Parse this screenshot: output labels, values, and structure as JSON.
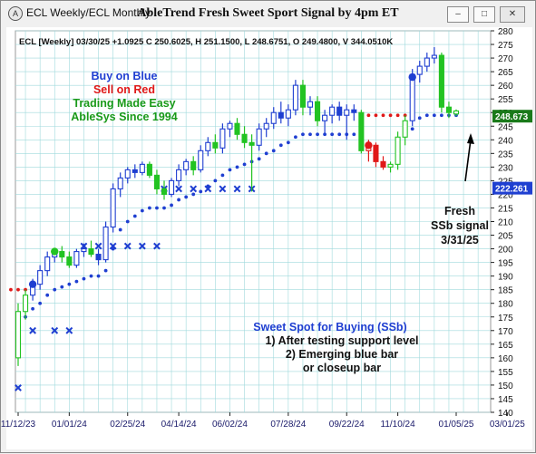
{
  "window": {
    "app_icon": "A",
    "title": "ECL Weekly/ECL Monthly",
    "main_title": "AbleTrend Fresh Sweet Sport Signal by 4pm ET",
    "buttons": [
      "minimize-icon",
      "restore-icon",
      "close-icon"
    ],
    "button_glyphs": [
      "–",
      "□",
      "✕"
    ]
  },
  "chart_data": {
    "type": "candlestick",
    "info_line": "ECL [Weekly] 03/30/25 +1.0925 C 250.6025, H 251.1500, L 248.6751, O 249.4800, V 344.0510K",
    "ylim": [
      140,
      280
    ],
    "y_ticks": [
      140,
      145,
      150,
      155,
      160,
      165,
      170,
      175,
      180,
      185,
      190,
      195,
      200,
      205,
      210,
      215,
      220,
      225,
      230,
      235,
      240,
      245,
      250,
      255,
      260,
      265,
      270,
      275,
      280
    ],
    "x_tick_labels": [
      "11/12/23",
      "01/01/24",
      "02/25/24",
      "04/14/24",
      "06/02/24",
      "07/28/24",
      "09/22/24",
      "11/10/24",
      "01/05/25",
      "03/01/25"
    ],
    "x_tick_week_index": [
      0,
      7,
      15,
      22,
      29,
      37,
      45,
      52,
      60,
      67
    ],
    "grid": true,
    "price_labels": [
      {
        "text": "248.673",
        "value": 248.673,
        "color": "#1a7a1a"
      },
      {
        "text": "222.261",
        "value": 222.261,
        "color": "#1f3fd1"
      }
    ],
    "legend_lines": [
      {
        "text": "Buy on Blue",
        "color": "#1f3fd1"
      },
      {
        "text": "Sell on Red",
        "color": "#e01818"
      },
      {
        "text": "Trading Made Easy",
        "color": "#1a9a1a"
      },
      {
        "text": "AbleSys Since 1994",
        "color": "#1a9a1a"
      }
    ],
    "annotation_lines": [
      "Sweet Spot for Buying (SSb)",
      "1) After testing support level",
      "2) Emerging blue bar",
      "or closeup bar"
    ],
    "signal_note_lines": [
      "Fresh",
      "SSb signal",
      "3/31/25"
    ],
    "colors": {
      "blue": "#1f3fd1",
      "red": "#e01818",
      "green": "#22c322",
      "grid": "#9fd9dc",
      "stop_blue": "#1f3fd1"
    },
    "candles": [
      {
        "o": 160,
        "h": 180,
        "l": 157,
        "c": 177,
        "color": "green"
      },
      {
        "o": 177,
        "h": 185,
        "l": 174,
        "c": 183,
        "color": "green"
      },
      {
        "o": 183,
        "h": 189,
        "l": 181,
        "c": 187,
        "color": "blue"
      },
      {
        "o": 187,
        "h": 194,
        "l": 185,
        "c": 192,
        "color": "blue"
      },
      {
        "o": 192,
        "h": 199,
        "l": 190,
        "c": 197,
        "color": "blue"
      },
      {
        "o": 197,
        "h": 200,
        "l": 195,
        "c": 199,
        "color": "blue"
      },
      {
        "o": 199,
        "h": 201,
        "l": 195,
        "c": 197,
        "color": "green"
      },
      {
        "o": 197,
        "h": 199,
        "l": 193,
        "c": 194,
        "color": "green"
      },
      {
        "o": 194,
        "h": 200,
        "l": 193,
        "c": 199,
        "color": "blue"
      },
      {
        "o": 199,
        "h": 202,
        "l": 197,
        "c": 200,
        "color": "blue"
      },
      {
        "o": 200,
        "h": 203,
        "l": 197,
        "c": 198,
        "color": "green"
      },
      {
        "o": 198,
        "h": 200,
        "l": 194,
        "c": 196,
        "color": "blue"
      },
      {
        "o": 196,
        "h": 210,
        "l": 195,
        "c": 208,
        "color": "blue"
      },
      {
        "o": 208,
        "h": 224,
        "l": 206,
        "c": 222,
        "color": "blue"
      },
      {
        "o": 222,
        "h": 228,
        "l": 219,
        "c": 226,
        "color": "blue"
      },
      {
        "o": 226,
        "h": 230,
        "l": 224,
        "c": 229,
        "color": "blue"
      },
      {
        "o": 229,
        "h": 231,
        "l": 226,
        "c": 228,
        "color": "blue"
      },
      {
        "o": 228,
        "h": 232,
        "l": 227,
        "c": 231,
        "color": "blue"
      },
      {
        "o": 231,
        "h": 232,
        "l": 226,
        "c": 227,
        "color": "green"
      },
      {
        "o": 227,
        "h": 229,
        "l": 220,
        "c": 222,
        "color": "green"
      },
      {
        "o": 222,
        "h": 225,
        "l": 218,
        "c": 220,
        "color": "green"
      },
      {
        "o": 220,
        "h": 226,
        "l": 219,
        "c": 225,
        "color": "blue"
      },
      {
        "o": 225,
        "h": 231,
        "l": 223,
        "c": 229,
        "color": "blue"
      },
      {
        "o": 229,
        "h": 233,
        "l": 227,
        "c": 232,
        "color": "blue"
      },
      {
        "o": 232,
        "h": 234,
        "l": 227,
        "c": 229,
        "color": "green"
      },
      {
        "o": 229,
        "h": 238,
        "l": 228,
        "c": 236,
        "color": "blue"
      },
      {
        "o": 236,
        "h": 241,
        "l": 234,
        "c": 239,
        "color": "blue"
      },
      {
        "o": 239,
        "h": 242,
        "l": 235,
        "c": 237,
        "color": "green"
      },
      {
        "o": 237,
        "h": 246,
        "l": 235,
        "c": 244,
        "color": "blue"
      },
      {
        "o": 244,
        "h": 247,
        "l": 241,
        "c": 246,
        "color": "blue"
      },
      {
        "o": 246,
        "h": 248,
        "l": 240,
        "c": 242,
        "color": "green"
      },
      {
        "o": 242,
        "h": 245,
        "l": 237,
        "c": 239,
        "color": "green"
      },
      {
        "o": 239,
        "h": 242,
        "l": 221,
        "c": 238,
        "color": "green"
      },
      {
        "o": 238,
        "h": 246,
        "l": 236,
        "c": 244,
        "color": "blue"
      },
      {
        "o": 244,
        "h": 248,
        "l": 241,
        "c": 246,
        "color": "blue"
      },
      {
        "o": 246,
        "h": 252,
        "l": 244,
        "c": 250,
        "color": "blue"
      },
      {
        "o": 250,
        "h": 254,
        "l": 246,
        "c": 248,
        "color": "blue"
      },
      {
        "o": 248,
        "h": 253,
        "l": 245,
        "c": 251,
        "color": "blue"
      },
      {
        "o": 251,
        "h": 262,
        "l": 249,
        "c": 260,
        "color": "blue"
      },
      {
        "o": 260,
        "h": 262,
        "l": 249,
        "c": 252,
        "color": "green"
      },
      {
        "o": 252,
        "h": 256,
        "l": 249,
        "c": 254,
        "color": "blue"
      },
      {
        "o": 254,
        "h": 256,
        "l": 245,
        "c": 247,
        "color": "green"
      },
      {
        "o": 247,
        "h": 251,
        "l": 242,
        "c": 249,
        "color": "blue"
      },
      {
        "o": 249,
        "h": 253,
        "l": 246,
        "c": 252,
        "color": "blue"
      },
      {
        "o": 252,
        "h": 254,
        "l": 247,
        "c": 249,
        "color": "blue"
      },
      {
        "o": 249,
        "h": 253,
        "l": 240,
        "c": 251,
        "color": "blue"
      },
      {
        "o": 251,
        "h": 253,
        "l": 247,
        "c": 250,
        "color": "blue"
      },
      {
        "o": 250,
        "h": 251,
        "l": 235,
        "c": 236,
        "color": "green"
      },
      {
        "o": 236,
        "h": 240,
        "l": 232,
        "c": 238,
        "color": "red"
      },
      {
        "o": 238,
        "h": 239,
        "l": 230,
        "c": 232,
        "color": "red"
      },
      {
        "o": 232,
        "h": 234,
        "l": 229,
        "c": 230,
        "color": "red"
      },
      {
        "o": 230,
        "h": 232,
        "l": 228,
        "c": 231,
        "color": "green"
      },
      {
        "o": 231,
        "h": 243,
        "l": 229,
        "c": 241,
        "color": "green"
      },
      {
        "o": 241,
        "h": 249,
        "l": 238,
        "c": 247,
        "color": "green"
      },
      {
        "o": 247,
        "h": 266,
        "l": 245,
        "c": 264,
        "color": "blue"
      },
      {
        "o": 264,
        "h": 269,
        "l": 261,
        "c": 267,
        "color": "blue"
      },
      {
        "o": 267,
        "h": 272,
        "l": 265,
        "c": 270,
        "color": "blue"
      },
      {
        "o": 270,
        "h": 274,
        "l": 268,
        "c": 271,
        "color": "blue"
      },
      {
        "o": 271,
        "h": 272,
        "l": 250,
        "c": 252,
        "color": "green"
      },
      {
        "o": 252,
        "h": 254,
        "l": 248,
        "c": 250,
        "color": "green"
      },
      {
        "o": 249.48,
        "h": 251.15,
        "l": 248.6751,
        "c": 250.6025,
        "color": "green"
      }
    ],
    "stop_dots_blue": [
      [
        172,
        0
      ],
      [
        175,
        1
      ],
      [
        178,
        2
      ],
      [
        180,
        3
      ],
      [
        183,
        4
      ],
      [
        185,
        5
      ],
      [
        186,
        6
      ],
      [
        187,
        7
      ],
      [
        188,
        8
      ],
      [
        189,
        9
      ],
      [
        190,
        10
      ],
      [
        190,
        11
      ],
      [
        192,
        12
      ],
      [
        200,
        13
      ],
      [
        207,
        14
      ],
      [
        210,
        15
      ],
      [
        212,
        16
      ],
      [
        214,
        17
      ],
      [
        215,
        18
      ],
      [
        215,
        19
      ],
      [
        215,
        20
      ],
      [
        216,
        21
      ],
      [
        218,
        22
      ],
      [
        219,
        23
      ],
      [
        220,
        24
      ],
      [
        221,
        25
      ],
      [
        223,
        26
      ],
      [
        225,
        27
      ],
      [
        227,
        28
      ],
      [
        229,
        29
      ],
      [
        230,
        30
      ],
      [
        231,
        31
      ],
      [
        232,
        32
      ],
      [
        233,
        33
      ],
      [
        235,
        34
      ],
      [
        236,
        35
      ],
      [
        238,
        36
      ],
      [
        239,
        37
      ],
      [
        241,
        38
      ],
      [
        242,
        39
      ],
      [
        242,
        40
      ],
      [
        242,
        41
      ],
      [
        242,
        42
      ],
      [
        242,
        43
      ],
      [
        242,
        44
      ],
      [
        242,
        45
      ],
      [
        242,
        46
      ],
      [
        244,
        54
      ],
      [
        248,
        55
      ],
      [
        249,
        56
      ],
      [
        249,
        57
      ],
      [
        249,
        58
      ],
      [
        249,
        59
      ],
      [
        249,
        60
      ]
    ],
    "stop_dots_red": [
      [
        185,
        -1
      ],
      [
        185,
        0
      ],
      [
        185,
        1
      ],
      [
        249,
        47
      ],
      [
        249,
        48
      ],
      [
        249,
        49
      ],
      [
        249,
        50
      ],
      [
        249,
        51
      ],
      [
        249,
        52
      ],
      [
        249,
        53
      ]
    ],
    "x_marks": [
      [
        149,
        0
      ],
      [
        170,
        2
      ],
      [
        170,
        5
      ],
      [
        170,
        7
      ],
      [
        201,
        9
      ],
      [
        201,
        11
      ],
      [
        201,
        13
      ],
      [
        201,
        15
      ],
      [
        201,
        17
      ],
      [
        201,
        19
      ],
      [
        222,
        20
      ],
      [
        222,
        22
      ],
      [
        222,
        24
      ],
      [
        222,
        26
      ],
      [
        222,
        28
      ],
      [
        222,
        30
      ],
      [
        222,
        32
      ]
    ],
    "big_dots": [
      {
        "value": 187,
        "week": 2,
        "color": "blue"
      },
      {
        "value": 199,
        "week": 5,
        "color": "green"
      },
      {
        "value": 263,
        "week": 54,
        "color": "blue"
      },
      {
        "value": 238,
        "week": 48,
        "color": "red"
      }
    ]
  }
}
